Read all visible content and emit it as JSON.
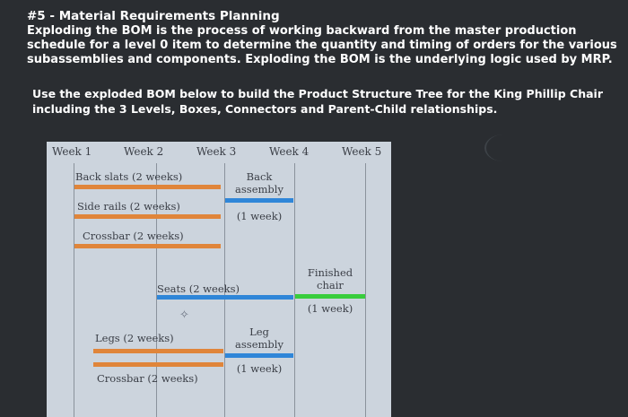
{
  "header": {
    "title": "#5 - Material Requirements Planning",
    "intro": "Exploding the BOM is the process of working backward from the master production schedule for a level 0 item to determine the quantity and timing of orders for the various subassemblies and components. Exploding the BOM is the underlying logic used by MRP."
  },
  "task": "Use the exploded BOM below to build the Product Structure Tree for the King Phillip Chair including the 3 Levels, Boxes, Connectors and Parent-Child relationships.",
  "chart": {
    "weeks": [
      "Week 1",
      "Week 2",
      "Week 3",
      "Week 4",
      "Week 5"
    ],
    "items": {
      "back_slats": "Back slats (2 weeks)",
      "side_rails": "Side rails (2 weeks)",
      "crossbar_top": "Crossbar (2 weeks)",
      "seats": "Seats (2 weeks)",
      "legs": "Legs (2 weeks)",
      "crossbar_bottom": "Crossbar (2 weeks)",
      "back_assembly_1": "Back",
      "back_assembly_2": "assembly",
      "back_assembly_time": "(1 week)",
      "finished_1": "Finished",
      "finished_2": "chair",
      "finished_time": "(1 week)",
      "leg_assembly_1": "Leg",
      "leg_assembly_2": "assembly",
      "leg_assembly_time": "(1 week)"
    },
    "colors": {
      "component": "#e0853a",
      "subassembly": "#2f86d8",
      "final": "#38cd3c"
    }
  }
}
